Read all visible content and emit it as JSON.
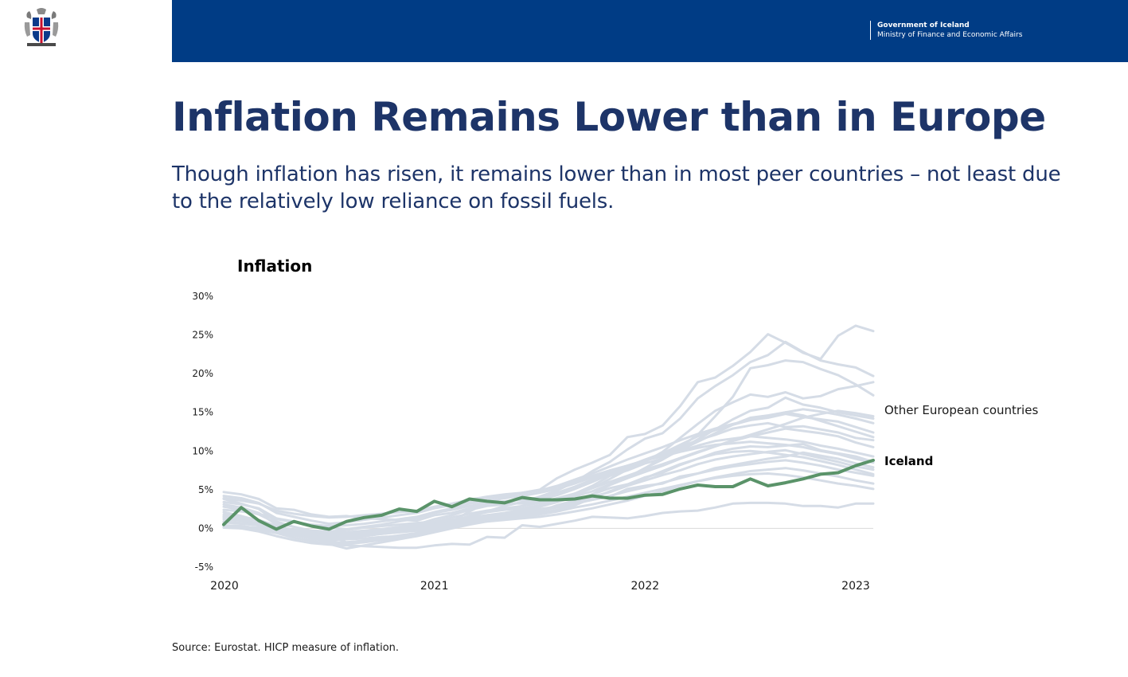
{
  "header": {
    "gov_name": "Government of Iceland",
    "ministry": "Ministry of Finance and Economic Affairs",
    "bar_color": "#003c85"
  },
  "page": {
    "title": "Inflation Remains Lower than in Europe",
    "subtitle": "Though inflation has risen, it remains lower than in most peer countries – not least due to the relatively low reliance on fossil fuels.",
    "source": "Source: Eurostat. HICP measure of inflation."
  },
  "chart_data": {
    "type": "line",
    "title": "Inflation",
    "xlabel": "",
    "ylabel": "",
    "ylim": [
      -5,
      30
    ],
    "yticks": [
      -5,
      0,
      5,
      10,
      15,
      20,
      25,
      30
    ],
    "ytick_labels": [
      "-5%",
      "0%",
      "5%",
      "10%",
      "15%",
      "20%",
      "25%",
      "30%"
    ],
    "x_ticks": [
      "2020",
      "2021",
      "2022",
      "2023"
    ],
    "x_start": "2020-01",
    "x_end": "2023-01",
    "grid": false,
    "legend": "inline-right",
    "colors": {
      "other": "#d5dce6",
      "iceland": "#5a9369"
    },
    "series": [
      {
        "name": "Iceland",
        "highlight": true,
        "values": [
          0.5,
          2.7,
          1.0,
          -0.1,
          0.9,
          0.3,
          -0.1,
          0.9,
          1.4,
          1.7,
          2.5,
          2.2,
          3.5,
          2.8,
          3.8,
          3.5,
          3.3,
          4.0,
          3.7,
          3.7,
          3.8,
          4.2,
          3.9,
          3.9,
          4.3,
          4.4,
          5.1,
          5.6,
          5.4,
          5.4,
          6.4,
          5.5,
          5.9,
          6.4,
          7.0,
          7.2,
          8.1,
          8.8
        ]
      },
      {
        "name": "Other European countries",
        "values": [
          4.7,
          4.4,
          3.8,
          2.6,
          2.4,
          1.8,
          1.5,
          1.6,
          1.3,
          1.2,
          1.1,
          1.0,
          1.7,
          2.0,
          2.6,
          3.1,
          3.3,
          3.2,
          3.4,
          3.6,
          4.5,
          5.5,
          6.8,
          7.5,
          8.4,
          9.0,
          10.1,
          11.2,
          12.3,
          13.4,
          14.3,
          14.6,
          15.0,
          14.6,
          13.9,
          13.2,
          12.5,
          11.8
        ]
      },
      {
        "name": "",
        "values": [
          2.1,
          1.6,
          1.0,
          -0.3,
          -0.8,
          -1.2,
          -1.5,
          -1.2,
          -0.9,
          -0.6,
          -0.3,
          0.0,
          0.4,
          0.8,
          1.1,
          1.3,
          1.6,
          2.0,
          2.4,
          2.8,
          3.6,
          4.4,
          5.6,
          6.5,
          7.8,
          9.1,
          10.5,
          12.1,
          14.5,
          17.0,
          20.7,
          21.1,
          21.7,
          21.5,
          20.6,
          19.8,
          18.6,
          17.2
        ]
      },
      {
        "name": "",
        "values": [
          3.8,
          3.2,
          2.5,
          0.9,
          0.2,
          -0.4,
          -0.8,
          -1.1,
          -1.0,
          -0.7,
          -0.5,
          -0.3,
          0.3,
          0.7,
          1.5,
          2.2,
          2.9,
          3.4,
          4.1,
          4.9,
          6.0,
          7.4,
          8.6,
          10.2,
          11.6,
          12.3,
          14.2,
          16.8,
          18.4,
          19.8,
          21.5,
          22.4,
          24.1,
          22.8,
          21.7,
          21.2,
          20.8,
          19.7
        ]
      },
      {
        "name": "",
        "values": [
          3.1,
          2.7,
          2.0,
          0.5,
          -0.5,
          -1.1,
          -1.9,
          -1.8,
          -1.6,
          -1.2,
          -0.9,
          -0.6,
          0.2,
          0.9,
          2.2,
          3.3,
          4.0,
          4.6,
          5.0,
          6.5,
          7.6,
          8.5,
          9.5,
          11.8,
          12.2,
          13.3,
          15.8,
          18.9,
          19.5,
          21.0,
          22.8,
          25.1,
          24.0,
          22.7,
          21.9,
          24.9,
          26.2,
          25.5
        ]
      },
      {
        "name": "",
        "values": [
          1.6,
          1.1,
          0.6,
          -0.2,
          -0.8,
          -1.3,
          -1.6,
          -1.4,
          -1.0,
          -0.7,
          -0.4,
          -0.1,
          0.6,
          1.0,
          1.6,
          2.1,
          2.4,
          2.6,
          3.0,
          3.7,
          4.4,
          5.3,
          6.0,
          6.6,
          7.8,
          8.9,
          10.2,
          11.5,
          12.8,
          14.1,
          15.2,
          15.6,
          16.9,
          16.0,
          15.6,
          15.0,
          14.6,
          14.2
        ]
      },
      {
        "name": "",
        "values": [
          1.4,
          1.0,
          0.6,
          0.2,
          -0.3,
          -0.6,
          -0.9,
          -1.0,
          -0.8,
          -0.6,
          -0.4,
          -0.2,
          0.5,
          1.0,
          1.4,
          1.6,
          1.8,
          1.9,
          2.2,
          3.0,
          3.6,
          4.4,
          5.2,
          5.7,
          6.6,
          7.2,
          8.2,
          9.0,
          9.8,
          10.3,
          10.6,
          10.5,
          10.7,
          10.9,
          10.1,
          9.7,
          9.3,
          8.6
        ]
      },
      {
        "name": "",
        "values": [
          0.4,
          0.3,
          0.0,
          -0.4,
          -0.9,
          -1.1,
          -1.3,
          -1.4,
          -1.3,
          -1.1,
          -1.0,
          -0.8,
          0.0,
          0.4,
          0.9,
          1.2,
          1.4,
          1.7,
          2.0,
          2.4,
          3.0,
          3.9,
          4.8,
          5.6,
          6.5,
          7.4,
          8.3,
          9.0,
          9.6,
          9.9,
          10.0,
          9.8,
          9.5,
          9.2,
          8.7,
          8.2,
          7.6,
          7.0
        ]
      },
      {
        "name": "",
        "values": [
          2.8,
          2.4,
          1.8,
          0.7,
          0.2,
          -0.3,
          -0.6,
          -0.5,
          -0.3,
          -0.1,
          0.2,
          0.5,
          1.2,
          1.7,
          2.4,
          2.9,
          3.1,
          3.3,
          3.7,
          4.3,
          5.1,
          6.0,
          7.0,
          7.8,
          8.7,
          9.5,
          10.5,
          11.4,
          12.1,
          12.9,
          13.3,
          13.6,
          13.1,
          13.2,
          12.8,
          12.4,
          11.7,
          11.4
        ]
      },
      {
        "name": "",
        "values": [
          0.9,
          0.7,
          0.4,
          0.0,
          -0.6,
          -0.9,
          -1.1,
          -1.0,
          -0.7,
          -0.5,
          -0.2,
          0.1,
          0.8,
          1.1,
          1.4,
          1.7,
          1.9,
          2.1,
          2.4,
          2.9,
          3.5,
          4.1,
          4.7,
          5.5,
          6.2,
          6.9,
          7.5,
          8.3,
          8.9,
          9.3,
          9.6,
          9.9,
          10.1,
          9.6,
          9.1,
          8.6,
          8.0,
          7.6
        ]
      },
      {
        "name": "",
        "values": [
          0.8,
          0.6,
          0.4,
          0.1,
          -0.2,
          -0.3,
          -0.4,
          -0.2,
          0.1,
          0.3,
          0.5,
          0.7,
          0.9,
          1.1,
          1.5,
          1.6,
          1.9,
          2.3,
          2.5,
          2.8,
          3.3,
          3.7,
          4.1,
          5.1,
          5.5,
          5.8,
          6.7,
          7.1,
          7.8,
          8.2,
          8.6,
          9.0,
          9.3,
          9.8,
          9.4,
          9.0,
          8.4,
          7.9
        ]
      },
      {
        "name": "",
        "values": [
          3.4,
          3.1,
          2.6,
          1.3,
          0.9,
          0.4,
          0.1,
          -0.1,
          0.2,
          0.5,
          0.9,
          1.3,
          2.0,
          2.4,
          2.9,
          3.3,
          3.5,
          3.7,
          4.0,
          4.6,
          5.4,
          6.3,
          7.2,
          8.0,
          8.9,
          9.7,
          10.8,
          11.9,
          12.7,
          13.4,
          14.0,
          14.3,
          14.8,
          14.4,
          14.1,
          13.8,
          13.1,
          12.4
        ]
      },
      {
        "name": "",
        "values": [
          2.4,
          2.2,
          1.9,
          1.2,
          0.8,
          0.5,
          0.3,
          0.4,
          0.6,
          0.9,
          1.2,
          1.5,
          2.1,
          2.6,
          3.2,
          3.6,
          3.9,
          4.2,
          4.6,
          5.1,
          5.8,
          6.6,
          7.4,
          8.1,
          8.8,
          9.4,
          10.0,
          10.7,
          11.3,
          11.6,
          11.9,
          11.7,
          11.5,
          11.2,
          10.7,
          10.3,
          9.8,
          9.3
        ]
      },
      {
        "name": "",
        "values": [
          1.8,
          1.5,
          1.1,
          0.3,
          -0.2,
          -0.6,
          -0.9,
          -0.8,
          -0.5,
          -0.3,
          0.0,
          0.3,
          0.9,
          1.4,
          1.9,
          2.3,
          2.6,
          2.9,
          3.3,
          3.9,
          4.5,
          5.2,
          6.0,
          6.8,
          7.6,
          8.3,
          9.1,
          9.9,
          10.6,
          11.3,
          11.9,
          12.4,
          12.9,
          12.6,
          12.3,
          11.9,
          11.1,
          10.5
        ]
      },
      {
        "name": "",
        "values": [
          0.2,
          0.1,
          -0.1,
          -0.5,
          -0.9,
          -1.3,
          -1.7,
          -2.0,
          -1.8,
          -1.5,
          -1.2,
          -0.9,
          -0.3,
          0.2,
          0.8,
          1.2,
          1.5,
          1.9,
          2.3,
          2.7,
          3.2,
          3.7,
          4.2,
          4.8,
          5.3,
          5.9,
          6.5,
          7.1,
          7.6,
          8.0,
          8.3,
          8.6,
          8.8,
          8.5,
          8.1,
          7.6,
          7.2,
          6.8
        ]
      },
      {
        "name": "",
        "values": [
          4.2,
          3.9,
          3.3,
          2.0,
          1.5,
          1.0,
          0.6,
          0.8,
          1.1,
          1.4,
          1.7,
          2.0,
          2.6,
          3.0,
          3.5,
          3.9,
          4.2,
          4.5,
          4.9,
          5.5,
          6.3,
          7.1,
          8.0,
          8.9,
          9.7,
          10.5,
          11.4,
          12.2,
          12.9,
          13.5,
          14.0,
          14.5,
          15.0,
          15.4,
          15.1,
          14.7,
          14.2,
          13.6
        ]
      },
      {
        "name": "",
        "values": [
          0.1,
          0.0,
          -0.2,
          -0.6,
          -1.2,
          -1.6,
          -2.0,
          -2.6,
          -2.2,
          -1.8,
          -1.4,
          -1.0,
          -0.5,
          0.0,
          0.5,
          0.9,
          1.2,
          1.5,
          1.8,
          2.2,
          2.7,
          3.1,
          3.6,
          4.1,
          4.6,
          5.1,
          5.6,
          6.1,
          6.5,
          6.8,
          7.0,
          7.1,
          6.9,
          6.6,
          6.2,
          5.8,
          5.5,
          5.1
        ]
      },
      {
        "name": "",
        "values": [
          1.2,
          1.0,
          0.7,
          -0.1,
          -0.5,
          -0.9,
          -1.2,
          -1.1,
          -0.9,
          -0.7,
          -0.5,
          -0.2,
          0.4,
          0.8,
          1.3,
          1.7,
          2.0,
          2.4,
          2.8,
          3.4,
          4.1,
          4.8,
          5.7,
          6.5,
          7.3,
          8.1,
          9.0,
          9.8,
          10.6,
          11.4,
          12.1,
          12.8,
          13.5,
          14.3,
          14.8,
          15.2,
          14.9,
          14.5
        ]
      },
      {
        "name": "",
        "values": [
          1.5,
          1.3,
          1.0,
          0.2,
          -0.3,
          -0.6,
          -1.0,
          -1.8,
          -1.6,
          -1.3,
          -1.0,
          -0.6,
          0.0,
          0.5,
          1.1,
          1.5,
          1.9,
          2.3,
          2.8,
          3.5,
          4.3,
          5.2,
          6.4,
          7.6,
          8.6,
          9.9,
          11.7,
          13.5,
          15.2,
          16.3,
          17.3,
          17.0,
          17.6,
          16.8,
          17.1,
          18.0,
          18.4,
          18.9
        ]
      },
      {
        "name": "",
        "values": [
          0.3,
          0.2,
          0.1,
          -0.2,
          -0.5,
          -0.7,
          -0.8,
          -0.7,
          -0.6,
          -0.5,
          -0.4,
          -0.3,
          0.0,
          0.3,
          0.6,
          0.9,
          1.1,
          1.3,
          1.5,
          1.8,
          2.2,
          2.6,
          3.1,
          3.6,
          4.2,
          4.8,
          5.5,
          6.1,
          6.6,
          7.0,
          7.4,
          7.6,
          7.8,
          7.5,
          7.1,
          6.7,
          6.2,
          5.8
        ]
      },
      {
        "name": "",
        "values": [
          0.3,
          0.0,
          -0.4,
          -1.0,
          -1.5,
          -1.9,
          -2.1,
          -2.2,
          -2.3,
          -2.4,
          -2.5,
          -2.5,
          -2.2,
          -2.0,
          -2.1,
          -1.1,
          -1.2,
          0.4,
          0.2,
          0.6,
          1.0,
          1.5,
          1.4,
          1.3,
          1.6,
          2.0,
          2.2,
          2.3,
          2.7,
          3.2,
          3.3,
          3.3,
          3.2,
          2.9,
          2.9,
          2.7,
          3.2,
          3.2
        ]
      },
      {
        "name": "",
        "values": [
          3.9,
          3.6,
          3.2,
          2.3,
          1.9,
          1.6,
          1.4,
          1.5,
          1.7,
          1.9,
          2.1,
          2.3,
          2.8,
          3.2,
          3.7,
          4.1,
          4.4,
          4.6,
          4.9,
          5.4,
          6.1,
          6.8,
          7.5,
          8.1,
          8.8,
          9.3,
          9.9,
          10.4,
          10.8,
          11.0,
          11.2,
          11.0,
          10.8,
          10.5,
          10.0,
          9.6,
          9.0,
          8.5
        ]
      }
    ],
    "labels": {
      "other": "Other European countries",
      "iceland": "Iceland"
    }
  }
}
